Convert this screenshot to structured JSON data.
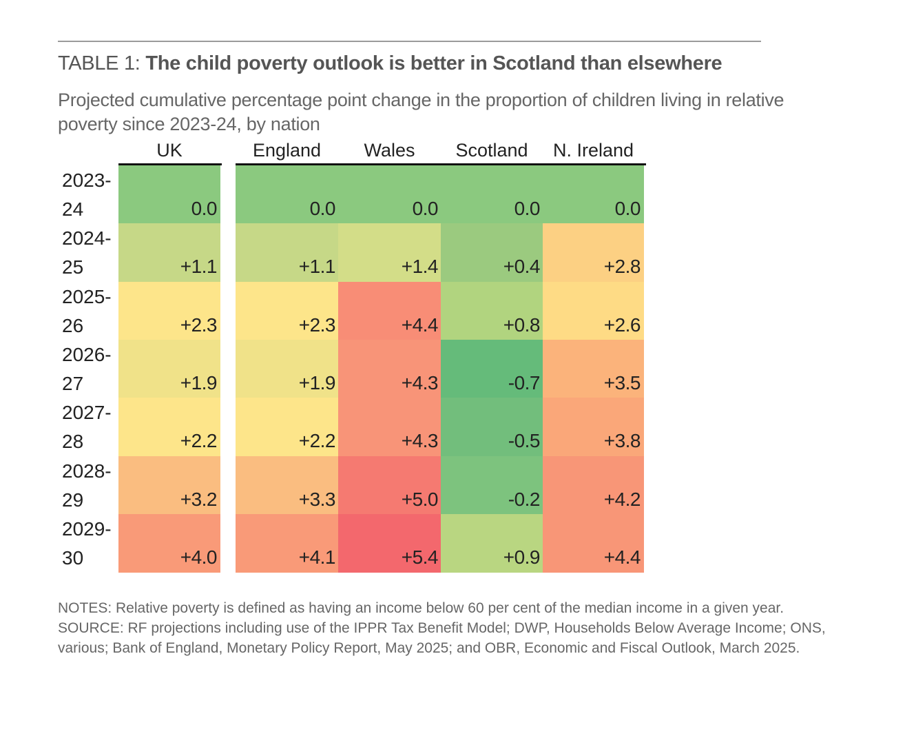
{
  "header": {
    "table_label": "TABLE 1: ",
    "title": "The child poverty outlook is better in Scotland than elsewhere",
    "subtitle": "Projected cumulative percentage point change in the proportion of children living in relative poverty since 2023-24, by nation"
  },
  "chart_data": {
    "type": "heatmap",
    "title": "The child poverty outlook is better in Scotland than elsewhere",
    "subtitle": "Projected cumulative percentage point change in the proportion of children living in relative poverty since 2023-24, by nation",
    "columns": [
      "UK",
      "England",
      "Wales",
      "Scotland",
      "N. Ireland"
    ],
    "rows": [
      {
        "label_top": "2023-",
        "label_bottom": "24",
        "period": "2023-24",
        "values": [
          0.0,
          0.0,
          0.0,
          0.0,
          0.0
        ],
        "display": [
          "0.0",
          "0.0",
          "0.0",
          "0.0",
          "0.0"
        ]
      },
      {
        "label_top": "2024-",
        "label_bottom": "25",
        "period": "2024-25",
        "values": [
          1.1,
          1.1,
          1.4,
          0.4,
          2.8
        ],
        "display": [
          "+1.1",
          "+1.1",
          "+1.4",
          "+0.4",
          "+2.8"
        ]
      },
      {
        "label_top": "2025-",
        "label_bottom": "26",
        "period": "2025-26",
        "values": [
          2.3,
          2.3,
          4.4,
          0.8,
          2.6
        ],
        "display": [
          "+2.3",
          "+2.3",
          "+4.4",
          "+0.8",
          "+2.6"
        ]
      },
      {
        "label_top": "2026-",
        "label_bottom": "27",
        "period": "2026-27",
        "values": [
          1.9,
          1.9,
          4.3,
          -0.7,
          3.5
        ],
        "display": [
          "+1.9",
          "+1.9",
          "+4.3",
          "-0.7",
          "+3.5"
        ]
      },
      {
        "label_top": "2027-",
        "label_bottom": "28",
        "period": "2027-28",
        "values": [
          2.2,
          2.2,
          4.3,
          -0.5,
          3.8
        ],
        "display": [
          "+2.2",
          "+2.2",
          "+4.3",
          "-0.5",
          "+3.8"
        ]
      },
      {
        "label_top": "2028-",
        "label_bottom": "29",
        "period": "2028-29",
        "values": [
          3.2,
          3.3,
          5.0,
          -0.2,
          4.2
        ],
        "display": [
          "+3.2",
          "+3.3",
          "+5.0",
          "-0.2",
          "+4.2"
        ]
      },
      {
        "label_top": "2029-",
        "label_bottom": "30",
        "period": "2029-30",
        "values": [
          4.0,
          4.1,
          5.4,
          0.9,
          4.4
        ],
        "display": [
          "+4.0",
          "+4.1",
          "+5.4",
          "+0.9",
          "+4.4"
        ]
      }
    ],
    "colors": [
      [
        "#8BC97F",
        "#8BC97F",
        "#8BC97F",
        "#8BC97F",
        "#8BC97F"
      ],
      [
        "#C6D887",
        "#C6D887",
        "#D3DD88",
        "#9BCA7F",
        "#FCD083"
      ],
      [
        "#FDE58A",
        "#FDE58A",
        "#F88D76",
        "#B1D47F",
        "#FEDB85"
      ],
      [
        "#F0E289",
        "#F0E289",
        "#F89478",
        "#65BB7A",
        "#FBB37B"
      ],
      [
        "#FDE58A",
        "#FDE58A",
        "#F89478",
        "#72BE7C",
        "#FAA779"
      ],
      [
        "#FABD80",
        "#FABD80",
        "#F57A71",
        "#7DC37E",
        "#F89677"
      ],
      [
        "#F99A78",
        "#F99A78",
        "#F3686D",
        "#B9D681",
        "#F89677"
      ]
    ],
    "color_scale": {
      "low": "#65BB7A",
      "mid": "#FDE58A",
      "high": "#F3686D"
    }
  },
  "notes": {
    "notes_text": "NOTES: Relative poverty is defined as having an income below 60 per cent of the median income in a given year.",
    "source_text": "SOURCE: RF projections including use of the IPPR Tax Benefit Model; DWP, Households Below Average Income; ONS, various; Bank of England, Monetary Policy Report, May 2025; and OBR, Economic and Fiscal Outlook, March 2025."
  }
}
